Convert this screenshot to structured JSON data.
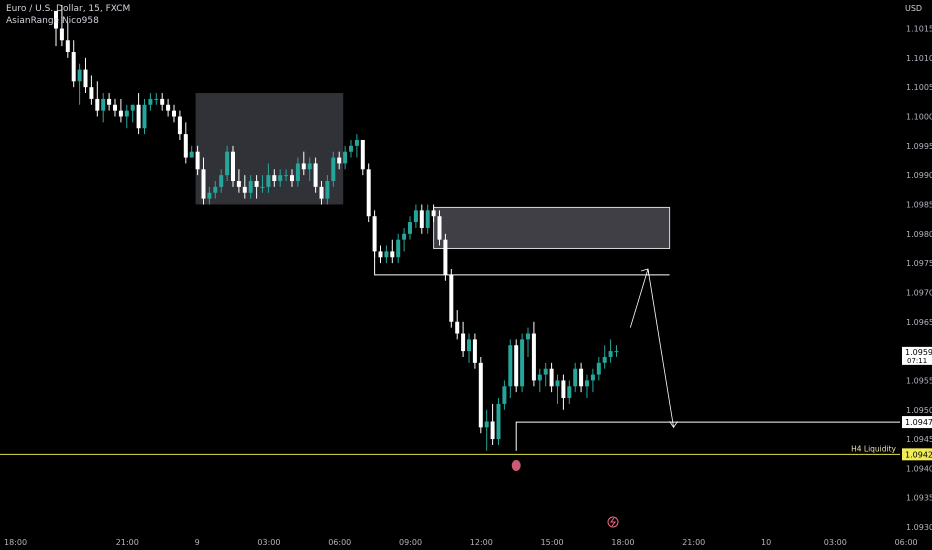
{
  "header": {
    "symbol": "Euro / U.S. Dollar, 15, FXCM",
    "indicator": "AsianRange Nico958"
  },
  "price_scale": {
    "currency": "USD"
  },
  "colors": {
    "background": "#000000",
    "bull": "#26a69a",
    "bear": "#ffffff",
    "zone": "#3a3b42",
    "liquidity_line": "#e3e04a",
    "liquidity_tag_bg": "#f0ec57",
    "sweep_marker": "#f06a86",
    "lightning": "#f06a86"
  },
  "chart_data": {
    "type": "candlestick",
    "title": "Euro / U.S. Dollar, 15, FXCM",
    "ylim": [
      1.09295,
      1.10185
    ],
    "y_ticks": [
      "1.10150",
      "1.10100",
      "1.10050",
      "1.10000",
      "1.09950",
      "1.09900",
      "1.09850",
      "1.09800",
      "1.09750",
      "1.09700",
      "1.09650",
      "1.09600",
      "1.09550",
      "1.09500",
      "1.09450",
      "1.09400",
      "1.09350",
      "1.09300"
    ],
    "x_ticks": [
      {
        "label": "18:00",
        "bar": 0
      },
      {
        "label": "21:00",
        "bar": 12
      },
      {
        "label": "9",
        "bar": 24
      },
      {
        "label": "03:00",
        "bar": 36
      },
      {
        "label": "06:00",
        "bar": 48
      },
      {
        "label": "09:00",
        "bar": 60
      },
      {
        "label": "12:00",
        "bar": 72
      },
      {
        "label": "15:00",
        "bar": 84
      },
      {
        "label": "18:00",
        "bar": 96
      },
      {
        "label": "21:00",
        "bar": 108
      },
      {
        "label": "10",
        "bar": 120
      },
      {
        "label": "03:00",
        "bar": 132
      },
      {
        "label": "06:00",
        "bar": 144
      }
    ],
    "candles": [
      [
        1.1018,
        1.1018,
        1.1012,
        1.1015
      ],
      [
        1.1015,
        1.1019,
        1.1012,
        1.1013
      ],
      [
        1.1013,
        1.1016,
        1.101,
        1.1011
      ],
      [
        1.1011,
        1.1013,
        1.1005,
        1.1006
      ],
      [
        1.1006,
        1.1009,
        1.1002,
        1.1008
      ],
      [
        1.1008,
        1.101,
        1.1004,
        1.1005
      ],
      [
        1.1005,
        1.1007,
        1.1002,
        1.1003
      ],
      [
        1.1003,
        1.1006,
        1.1,
        1.1001
      ],
      [
        1.1001,
        1.1004,
        1.0999,
        1.1003
      ],
      [
        1.1003,
        1.1004,
        1.1001,
        1.1002
      ],
      [
        1.1002,
        1.1003,
        1.1,
        1.1001
      ],
      [
        1.1001,
        1.1003,
        1.0999,
        1.1
      ],
      [
        1.1,
        1.1002,
        1.0998,
        1.1001
      ],
      [
        1.1001,
        1.1002,
        1.0999,
        1.1002
      ],
      [
        1.1002,
        1.1004,
        1.0997,
        1.0998
      ],
      [
        1.0998,
        1.1003,
        1.0997,
        1.1002
      ],
      [
        1.1002,
        1.1004,
        1.1001,
        1.1003
      ],
      [
        1.1003,
        1.1004,
        1.1002,
        1.1003
      ],
      [
        1.1003,
        1.1004,
        1.1001,
        1.1002
      ],
      [
        1.1002,
        1.1003,
        1.1,
        1.1001
      ],
      [
        1.1001,
        1.1002,
        1.0999,
        1.1
      ],
      [
        1.1,
        1.1001,
        1.0996,
        1.0997
      ],
      [
        1.0997,
        1.0999,
        1.0992,
        1.0993
      ],
      [
        1.0993,
        1.0995,
        1.0993,
        1.0994
      ],
      [
        1.0994,
        1.0995,
        1.099,
        1.0991
      ],
      [
        1.0991,
        1.0993,
        1.0985,
        1.0986
      ],
      [
        1.0986,
        1.0988,
        1.0985,
        1.0987
      ],
      [
        1.0987,
        1.0989,
        1.0986,
        1.0988
      ],
      [
        1.0988,
        1.0991,
        1.0987,
        1.099
      ],
      [
        1.099,
        1.0995,
        1.0989,
        1.0994
      ],
      [
        1.0994,
        1.0995,
        1.0988,
        1.0989
      ],
      [
        1.0989,
        1.0991,
        1.0987,
        1.0988
      ],
      [
        1.0988,
        1.099,
        1.0986,
        1.0987
      ],
      [
        1.0987,
        1.099,
        1.0986,
        1.0989
      ],
      [
        1.0989,
        1.099,
        1.0986,
        1.0988
      ],
      [
        1.0988,
        1.099,
        1.0987,
        1.0988
      ],
      [
        1.0988,
        1.0992,
        1.0987,
        1.099
      ],
      [
        1.099,
        1.0991,
        1.0988,
        1.0989
      ],
      [
        1.0989,
        1.0991,
        1.0988,
        1.099
      ],
      [
        1.099,
        1.0991,
        1.0989,
        1.099
      ],
      [
        1.099,
        1.0991,
        1.0988,
        1.0989
      ],
      [
        1.0989,
        1.0993,
        1.0988,
        1.0992
      ],
      [
        1.0992,
        1.0994,
        1.099,
        1.0991
      ],
      [
        1.0991,
        1.0993,
        1.0989,
        1.0992
      ],
      [
        1.0992,
        1.0993,
        1.0987,
        1.0988
      ],
      [
        1.0988,
        1.0989,
        1.0985,
        1.0986
      ],
      [
        1.0986,
        1.099,
        1.0985,
        1.0989
      ],
      [
        1.0989,
        1.0994,
        1.0988,
        1.0993
      ],
      [
        1.0993,
        1.0994,
        1.0991,
        1.0992
      ],
      [
        1.0992,
        1.0995,
        1.0991,
        1.0994
      ],
      [
        1.0994,
        1.0996,
        1.0993,
        1.0995
      ],
      [
        1.0995,
        1.0997,
        1.0993,
        1.0996
      ],
      [
        1.0996,
        1.0996,
        1.099,
        1.0991
      ],
      [
        1.0991,
        1.0992,
        1.0982,
        1.0983
      ],
      [
        1.0983,
        1.0984,
        1.0976,
        1.0977
      ],
      [
        1.0977,
        1.0978,
        1.0975,
        1.0976
      ],
      [
        1.0976,
        1.0978,
        1.0975,
        1.0977
      ],
      [
        1.0977,
        1.0979,
        1.0975,
        1.0976
      ],
      [
        1.0976,
        1.098,
        1.0975,
        1.0979
      ],
      [
        1.0979,
        1.0981,
        1.0977,
        1.098
      ],
      [
        1.098,
        1.0983,
        1.0979,
        1.0982
      ],
      [
        1.0982,
        1.0985,
        1.0981,
        1.0984
      ],
      [
        1.0984,
        1.0985,
        1.098,
        1.0981
      ],
      [
        1.0981,
        1.0985,
        1.098,
        1.0984
      ],
      [
        1.0984,
        1.0985,
        1.0982,
        1.0983
      ],
      [
        1.0983,
        1.0984,
        1.0978,
        1.0979
      ],
      [
        1.0979,
        1.098,
        1.0972,
        1.0973
      ],
      [
        1.0973,
        1.0974,
        1.0964,
        1.0965
      ],
      [
        1.0965,
        1.0967,
        1.0962,
        1.0963
      ],
      [
        1.0963,
        1.0965,
        1.0959,
        1.096
      ],
      [
        1.096,
        1.0963,
        1.0958,
        1.0962
      ],
      [
        1.0962,
        1.0963,
        1.0957,
        1.0958
      ],
      [
        1.0958,
        1.0959,
        1.0946,
        1.0947
      ],
      [
        1.0947,
        1.095,
        1.0943,
        1.0948
      ],
      [
        1.0948,
        1.0951,
        1.0944,
        1.0945
      ],
      [
        1.0945,
        1.0952,
        1.0944,
        1.0951
      ],
      [
        1.0951,
        1.0955,
        1.095,
        1.0954
      ],
      [
        1.0954,
        1.0962,
        1.0952,
        1.0961
      ],
      [
        1.0961,
        1.0962,
        1.0953,
        1.0954
      ],
      [
        1.0954,
        1.0963,
        1.0953,
        1.0962
      ],
      [
        1.0962,
        1.0964,
        1.0959,
        1.0963
      ],
      [
        1.0963,
        1.0965,
        1.0954,
        1.0955
      ],
      [
        1.0955,
        1.0957,
        1.0953,
        1.0956
      ],
      [
        1.0956,
        1.0958,
        1.0954,
        1.0957
      ],
      [
        1.0957,
        1.0958,
        1.0953,
        1.0954
      ],
      [
        1.0954,
        1.0956,
        1.0951,
        1.0955
      ],
      [
        1.0955,
        1.0956,
        1.095,
        1.0952
      ],
      [
        1.0952,
        1.0955,
        1.0951,
        1.0954
      ],
      [
        1.0954,
        1.0958,
        1.0953,
        1.0957
      ],
      [
        1.0957,
        1.0958,
        1.0953,
        1.0954
      ],
      [
        1.0954,
        1.0956,
        1.0952,
        1.0955
      ],
      [
        1.0955,
        1.0957,
        1.0953,
        1.0956
      ],
      [
        1.0956,
        1.0959,
        1.0955,
        1.0958
      ],
      [
        1.0958,
        1.0961,
        1.0957,
        1.0959
      ],
      [
        1.0959,
        1.0962,
        1.0958,
        1.096
      ],
      [
        1.096,
        1.0961,
        1.0959,
        1.096
      ]
    ],
    "current_price": "1.09597",
    "countdown": "07:11",
    "levels": [
      {
        "label": "H4 Liquidity",
        "price_text": "1.09424",
        "price": 1.09424
      },
      {
        "label": "",
        "price_text": "1.09479",
        "price": 1.09479
      }
    ],
    "zones": [
      {
        "name": "asian-range",
        "top": 1.1004,
        "bottom": 1.0985
      },
      {
        "name": "order-block",
        "top": 1.09845,
        "bottom": 1.09775
      }
    ]
  }
}
